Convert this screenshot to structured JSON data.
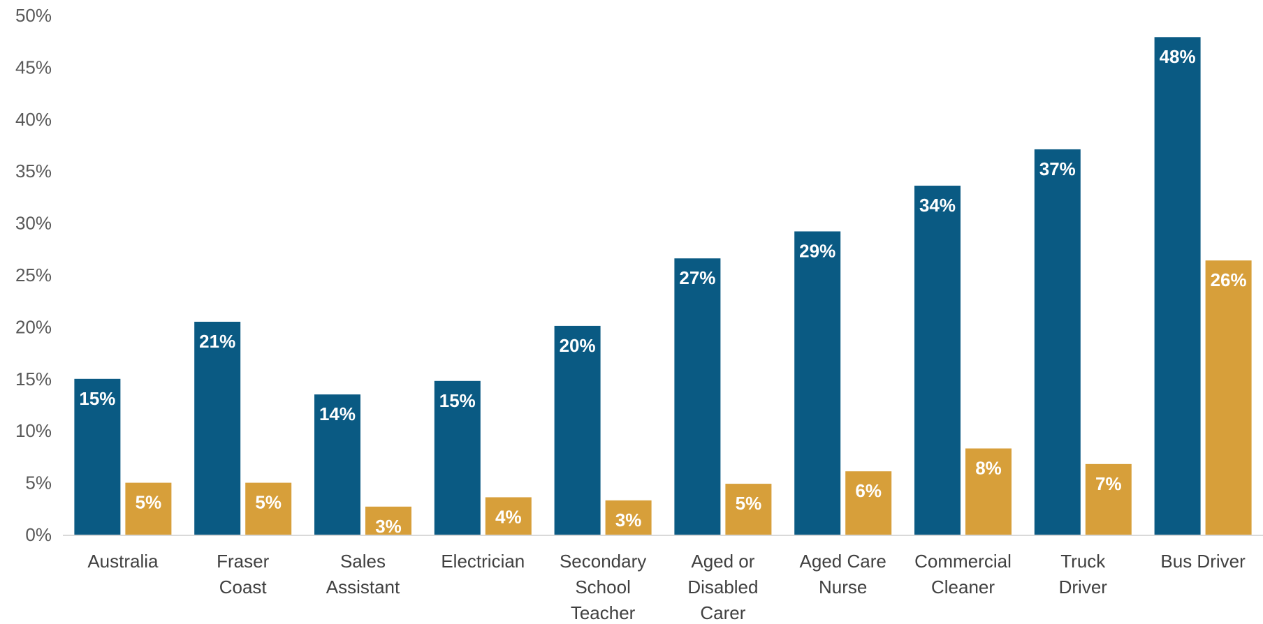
{
  "colors": {
    "series_1": "#0a5a83",
    "series_2": "#d79f3a"
  },
  "chart_data": {
    "type": "bar",
    "title": "",
    "xlabel": "",
    "ylabel": "",
    "ylim": [
      0,
      50
    ],
    "y_ticks": [
      "0%",
      "5%",
      "10%",
      "15%",
      "20%",
      "25%",
      "30%",
      "35%",
      "40%",
      "45%",
      "50%"
    ],
    "grid": false,
    "legend": "none",
    "categories": [
      [
        "Australia"
      ],
      [
        "Fraser",
        "Coast"
      ],
      [
        "Sales",
        "Assistant"
      ],
      [
        "Electrician"
      ],
      [
        "Secondary",
        "School",
        "Teacher"
      ],
      [
        "Aged or",
        "Disabled",
        "Carer"
      ],
      [
        "Aged Care",
        "Nurse"
      ],
      [
        "Commercial",
        "Cleaner"
      ],
      [
        "Truck",
        "Driver"
      ],
      [
        "Bus Driver"
      ]
    ],
    "series": [
      {
        "values": [
          15,
          20.5,
          13.5,
          14.8,
          20.1,
          26.6,
          29.2,
          33.6,
          37.1,
          47.9
        ],
        "labels": [
          "15%",
          "21%",
          "14%",
          "15%",
          "20%",
          "27%",
          "29%",
          "34%",
          "37%",
          "48%"
        ]
      },
      {
        "values": [
          5,
          5,
          2.7,
          3.6,
          3.3,
          4.9,
          6.1,
          8.3,
          6.8,
          26.4
        ],
        "labels": [
          "5%",
          "5%",
          "3%",
          "4%",
          "3%",
          "5%",
          "6%",
          "8%",
          "7%",
          "26%"
        ]
      }
    ]
  }
}
